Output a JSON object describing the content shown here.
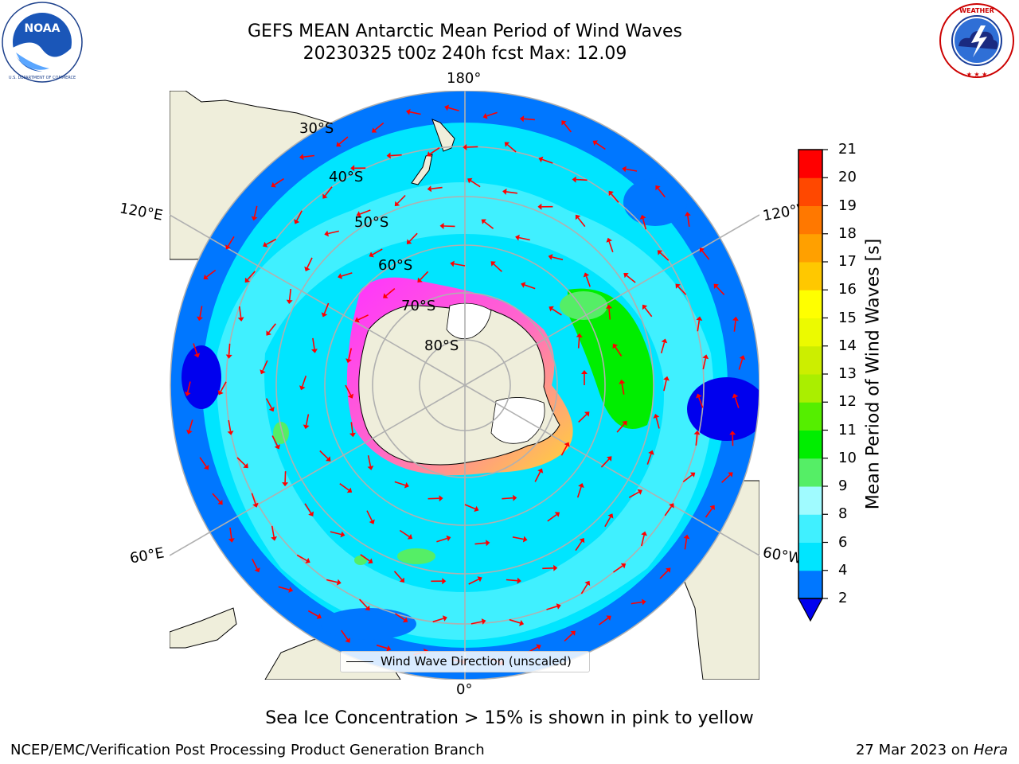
{
  "header": {
    "title_line1": "GEFS MEAN Antarctic Mean Period of Wind Waves",
    "title_line2": "20230325 t00z 240h fcst   Max: 12.09"
  },
  "logos": {
    "left": {
      "name": "noaa-logo",
      "text": "NOAA",
      "ring_text": "NATIONAL OCEANIC AND ATMOSPHERIC ADMINISTRATION · U.S. DEPARTMENT OF COMMERCE"
    },
    "right": {
      "name": "nws-logo",
      "ring_text": "NATIONAL WEATHER SERVICE"
    }
  },
  "map": {
    "projection": "south-polar-stereographic",
    "longitude_labels": {
      "top": "180°",
      "bottom": "0°",
      "upper_left": "120°E",
      "lower_left": "60°E",
      "upper_right": "120°W",
      "lower_right": "60°W"
    },
    "latitude_labels": [
      "30°S",
      "40°S",
      "50°S",
      "60°S",
      "70°S",
      "80°S"
    ],
    "legend": {
      "label": "Wind Wave Direction (unscaled)"
    },
    "colors": {
      "land": "#efeedb",
      "ice_low": "#ff33ff",
      "ice_high": "#ffd633",
      "arrow": "#ff0000",
      "graticule": "#b0b0b0"
    }
  },
  "colorbar": {
    "label": "Mean Period of Wind Waves [s]",
    "ticks": [
      "2",
      "4",
      "6",
      "8",
      "9",
      "10",
      "11",
      "12",
      "13",
      "14",
      "15",
      "16",
      "17",
      "18",
      "19",
      "20",
      "21"
    ],
    "bins": [
      {
        "from": 2,
        "to": 4,
        "color": "#0077ff"
      },
      {
        "from": 4,
        "to": 6,
        "color": "#00e5ff"
      },
      {
        "from": 6,
        "to": 8,
        "color": "#40f0ff"
      },
      {
        "from": 8,
        "to": 9,
        "color": "#a0fbff"
      },
      {
        "from": 9,
        "to": 10,
        "color": "#55ee66"
      },
      {
        "from": 10,
        "to": 11,
        "color": "#00ee00"
      },
      {
        "from": 11,
        "to": 12,
        "color": "#55ee00"
      },
      {
        "from": 12,
        "to": 13,
        "color": "#aaee00"
      },
      {
        "from": 13,
        "to": 14,
        "color": "#ccee00"
      },
      {
        "from": 14,
        "to": 15,
        "color": "#ecfa00"
      },
      {
        "from": 15,
        "to": 16,
        "color": "#ffff00"
      },
      {
        "from": 16,
        "to": 17,
        "color": "#ffc800"
      },
      {
        "from": 17,
        "to": 18,
        "color": "#ffa000"
      },
      {
        "from": 18,
        "to": 19,
        "color": "#ff7800"
      },
      {
        "from": 19,
        "to": 20,
        "color": "#ff4800"
      },
      {
        "from": 20,
        "to": 21,
        "color": "#ff0000"
      }
    ],
    "under_color": "#0000ee",
    "extend": "min"
  },
  "footer": {
    "note": "Sea Ice Concentration > 15% is shown in pink to yellow",
    "credit": "NCEP/EMC/Verification Post Processing Product Generation Branch",
    "date": "27 Mar 2023 on",
    "machine": "Hera"
  }
}
